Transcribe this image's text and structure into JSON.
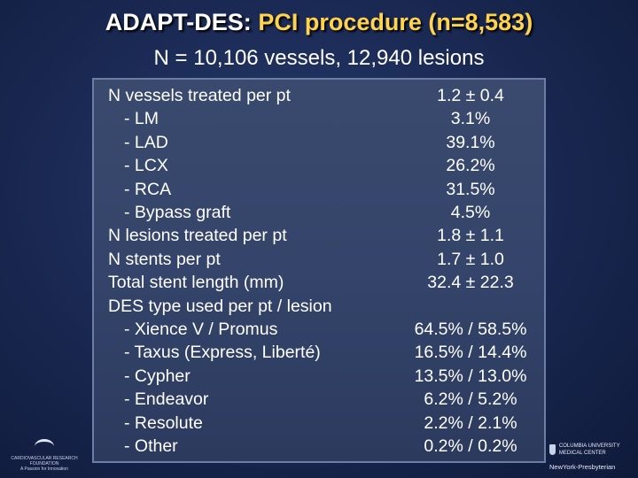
{
  "title": {
    "part1": "ADAPT-DES:",
    "part2": "PCI procedure (n=8,583)"
  },
  "subtitle": "N = 10,106 vessels, 12,940 lesions",
  "rows": [
    {
      "label": "N vessels treated per pt",
      "value": "1.2 ± 0.4",
      "indent": false
    },
    {
      "label": "- LM",
      "value": "3.1%",
      "indent": true
    },
    {
      "label": "- LAD",
      "value": "39.1%",
      "indent": true
    },
    {
      "label": "- LCX",
      "value": "26.2%",
      "indent": true
    },
    {
      "label": "- RCA",
      "value": "31.5%",
      "indent": true
    },
    {
      "label": "- Bypass graft",
      "value": "4.5%",
      "indent": true
    },
    {
      "label": "N lesions treated per pt",
      "value": "1.8 ± 1.1",
      "indent": false
    },
    {
      "label": "N stents per pt",
      "value": "1.7 ± 1.0",
      "indent": false
    },
    {
      "label": "Total stent length (mm)",
      "value": "32.4 ± 22.3",
      "indent": false
    },
    {
      "label": "DES type used per pt / lesion",
      "value": "",
      "indent": false
    },
    {
      "label": "- Xience V / Promus",
      "value": "64.5% / 58.5%",
      "indent": true
    },
    {
      "label": "- Taxus (Express, Liberté)",
      "value": "16.5% / 14.4%",
      "indent": true
    },
    {
      "label": "- Cypher",
      "value": "13.5% / 13.0%",
      "indent": true
    },
    {
      "label": "- Endeavor",
      "value": "6.2% / 5.2%",
      "indent": true
    },
    {
      "label": "- Resolute",
      "value": "2.2% / 2.1%",
      "indent": true
    },
    {
      "label": "- Other",
      "value": "0.2% / 0.2%",
      "indent": true
    }
  ],
  "logos": {
    "left": "CARDIOVASCULAR RESEARCH FOUNDATION",
    "left_tagline": "A Passion for Innovation",
    "right_1": "COLUMBIA UNIVERSITY MEDICAL CENTER",
    "right_2": "NewYork-Presbyterian"
  },
  "colors": {
    "title_accent": "#ffd34d",
    "background": "#1b2a55",
    "panel": "#34446a"
  }
}
